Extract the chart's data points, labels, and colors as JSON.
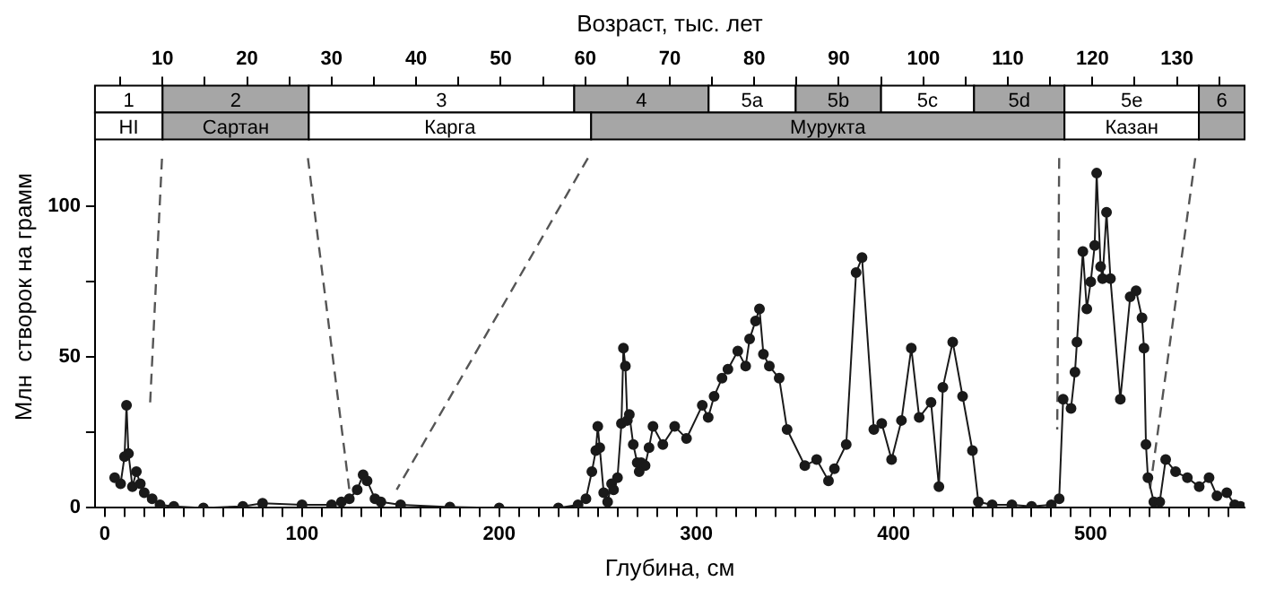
{
  "chart_data": {
    "type": "line",
    "xlabel": "Глубина, см",
    "x2label": "Возраст, тыс. лет",
    "ylabel": "Млн  створок на грамм",
    "xlim": [
      -5,
      578
    ],
    "ylim": [
      0,
      140
    ],
    "x2lim": [
      2,
      138
    ],
    "xticks": [
      0,
      {
        "value": 10,
        "label": null
      },
      {
        "value": 20,
        "label": null
      },
      {
        "value": 30,
        "label": null
      },
      {
        "value": 40,
        "label": null
      },
      {
        "value": 50,
        "label": null
      },
      {
        "value": 60,
        "label": null
      },
      {
        "value": 70,
        "label": null
      },
      {
        "value": 80,
        "label": null
      },
      {
        "value": 90,
        "label": null
      },
      100,
      {
        "value": 110,
        "label": null
      },
      {
        "value": 120,
        "label": null
      },
      {
        "value": 130,
        "label": null
      },
      {
        "value": 140,
        "label": null
      },
      {
        "value": 150,
        "label": null
      },
      {
        "value": 160,
        "label": null
      },
      {
        "value": 170,
        "label": null
      },
      {
        "value": 180,
        "label": null
      },
      {
        "value": 190,
        "label": null
      },
      200,
      {
        "value": 210,
        "label": null
      },
      {
        "value": 220,
        "label": null
      },
      {
        "value": 230,
        "label": null
      },
      {
        "value": 240,
        "label": null
      },
      {
        "value": 250,
        "label": null
      },
      {
        "value": 260,
        "label": null
      },
      {
        "value": 270,
        "label": null
      },
      {
        "value": 280,
        "label": null
      },
      {
        "value": 290,
        "label": null
      },
      300,
      {
        "value": 310,
        "label": null
      },
      {
        "value": 320,
        "label": null
      },
      {
        "value": 330,
        "label": null
      },
      {
        "value": 340,
        "label": null
      },
      {
        "value": 350,
        "label": null
      },
      {
        "value": 360,
        "label": null
      },
      {
        "value": 370,
        "label": null
      },
      {
        "value": 380,
        "label": null
      },
      {
        "value": 390,
        "label": null
      },
      400,
      {
        "value": 410,
        "label": null
      },
      {
        "value": 420,
        "label": null
      },
      {
        "value": 430,
        "label": null
      },
      {
        "value": 440,
        "label": null
      },
      {
        "value": 450,
        "label": null
      },
      {
        "value": 460,
        "label": null
      },
      {
        "value": 470,
        "label": null
      },
      {
        "value": 480,
        "label": null
      },
      {
        "value": 490,
        "label": null
      },
      500,
      {
        "value": 510,
        "label": null
      },
      {
        "value": 520,
        "label": null
      },
      {
        "value": 530,
        "label": null
      },
      {
        "value": 540,
        "label": null
      },
      {
        "value": 550,
        "label": null
      },
      {
        "value": 560,
        "label": null
      },
      {
        "value": 570,
        "label": null
      }
    ],
    "x2ticks": [
      {
        "value": 5,
        "label": null
      },
      10,
      {
        "value": 15,
        "label": null
      },
      20,
      {
        "value": 25,
        "label": null
      },
      30,
      {
        "value": 35,
        "label": null
      },
      40,
      {
        "value": 45,
        "label": null
      },
      50,
      {
        "value": 55,
        "label": null
      },
      60,
      {
        "value": 65,
        "label": null
      },
      70,
      {
        "value": 75,
        "label": null
      },
      80,
      {
        "value": 85,
        "label": null
      },
      90,
      {
        "value": 95,
        "label": null
      },
      100,
      {
        "value": 105,
        "label": null
      },
      110,
      {
        "value": 115,
        "label": null
      },
      120,
      {
        "value": 125,
        "label": null
      },
      130,
      {
        "value": 135,
        "label": null
      }
    ],
    "yticks": [
      0,
      {
        "value": 25,
        "label": null
      },
      50,
      {
        "value": 75,
        "label": null
      },
      100
    ],
    "grid": false,
    "legend": false,
    "series": [
      {
        "color": "#1a1a1a",
        "marker": "circle",
        "line_style": "solid",
        "x": [
          5,
          8,
          10,
          11,
          12,
          14,
          16,
          18,
          20,
          24,
          28,
          35,
          50,
          70,
          80,
          100,
          115,
          120,
          124,
          128,
          131,
          133,
          137,
          140,
          150,
          175,
          200,
          230,
          240,
          244,
          247,
          249,
          250,
          251,
          253,
          255,
          257,
          258,
          260,
          262,
          263,
          264,
          265,
          266,
          268,
          270,
          271,
          272,
          274,
          276,
          278,
          283,
          289,
          295,
          303,
          306,
          309,
          313,
          316,
          321,
          325,
          327,
          330,
          332,
          334,
          337,
          342,
          346,
          355,
          361,
          367,
          370,
          376,
          381,
          384,
          390,
          394,
          399,
          404,
          409,
          413,
          419,
          423,
          425,
          430,
          435,
          440,
          443,
          450,
          460,
          470,
          480,
          484,
          486,
          490,
          492,
          493,
          496,
          498,
          500,
          502,
          503,
          505,
          506,
          508,
          510,
          515,
          520,
          523,
          526,
          527,
          528,
          529,
          532,
          535,
          538,
          543,
          549,
          555,
          560,
          564,
          569,
          573,
          576
        ],
        "values": [
          10,
          8,
          17,
          34,
          18,
          7,
          12,
          8,
          5,
          3,
          1,
          0.5,
          0,
          0.5,
          1.5,
          1,
          1,
          2,
          3,
          6,
          11,
          9,
          3,
          2,
          1,
          0.3,
          0,
          0,
          1,
          3,
          12,
          19,
          27,
          20,
          5,
          2,
          8,
          6,
          10,
          28,
          53,
          47,
          29,
          31,
          21,
          15,
          12,
          15,
          14,
          20,
          27,
          21,
          27,
          23,
          34,
          30,
          37,
          43,
          46,
          52,
          47,
          56,
          62,
          66,
          51,
          47,
          43,
          26,
          14,
          16,
          9,
          13,
          21,
          78,
          83,
          26,
          28,
          16,
          29,
          53,
          30,
          35,
          7,
          40,
          55,
          37,
          19,
          2,
          1,
          1,
          0.5,
          1,
          3,
          36,
          33,
          45,
          55,
          85,
          66,
          75,
          87,
          111,
          80,
          76,
          98,
          76,
          36,
          70,
          72,
          63,
          53,
          21,
          10,
          2,
          2,
          16,
          12,
          10,
          7,
          10,
          4,
          5,
          1,
          0.5
        ]
      },
      {
        "color": "#555555",
        "marker": "none",
        "line_style": "dashed",
        "x": [
          23,
          29
        ],
        "values": [
          35,
          116
        ]
      },
      {
        "color": "#555555",
        "marker": "none",
        "line_style": "dashed",
        "x": [
          103,
          124
        ],
        "values": [
          116,
          6
        ]
      },
      {
        "color": "#555555",
        "marker": "none",
        "line_style": "dashed",
        "x": [
          245,
          148
        ],
        "values": [
          116,
          6
        ]
      },
      {
        "color": "#555555",
        "marker": "none",
        "line_style": "dashed",
        "x": [
          484,
          483
        ],
        "values": [
          116,
          26
        ]
      },
      {
        "color": "#555555",
        "marker": "none",
        "line_style": "dashed",
        "x": [
          553,
          530
        ],
        "values": [
          116,
          6
        ]
      }
    ],
    "bands": [
      {
        "axis": "x2",
        "from": 2,
        "to": 10,
        "label": "1",
        "color": "#ffffff"
      },
      {
        "axis": "x2",
        "from": 10,
        "to": 27.3,
        "label": "2",
        "color": "#a6a6a6"
      },
      {
        "axis": "x2",
        "from": 27.3,
        "to": 58.7,
        "label": "3",
        "color": "#ffffff"
      },
      {
        "axis": "x2",
        "from": 58.7,
        "to": 74.6,
        "label": "4",
        "color": "#a6a6a6"
      },
      {
        "axis": "x2",
        "from": 74.6,
        "to": 84.9,
        "label": "5a",
        "color": "#ffffff"
      },
      {
        "axis": "x2",
        "from": 84.9,
        "to": 95,
        "label": "5b",
        "color": "#a6a6a6"
      },
      {
        "axis": "x2",
        "from": 95,
        "to": 106,
        "label": "5c",
        "color": "#ffffff"
      },
      {
        "axis": "x2",
        "from": 106,
        "to": 116.7,
        "label": "5d",
        "color": "#a6a6a6"
      },
      {
        "axis": "x2",
        "from": 116.7,
        "to": 132.6,
        "label": "5e",
        "color": "#ffffff"
      },
      {
        "axis": "x2",
        "from": 132.6,
        "to": 138,
        "label": "6",
        "color": "#a6a6a6"
      },
      {
        "axis": "x2",
        "from": 2,
        "to": 10,
        "label": "HI",
        "color": "#ffffff"
      },
      {
        "axis": "x2",
        "from": 10,
        "to": 27.3,
        "label": "Сартан",
        "color": "#a6a6a6"
      },
      {
        "axis": "x2",
        "from": 27.3,
        "to": 60.7,
        "label": "Карга",
        "color": "#ffffff"
      },
      {
        "axis": "x2",
        "from": 60.7,
        "to": 116.7,
        "label": "Мурукта",
        "color": "#a6a6a6"
      },
      {
        "axis": "x2",
        "from": 116.7,
        "to": 132.6,
        "label": "Казан",
        "color": "#ffffff"
      },
      {
        "axis": "x2",
        "from": 132.6,
        "to": 138,
        "label": null,
        "color": "#a6a6a6"
      }
    ]
  }
}
